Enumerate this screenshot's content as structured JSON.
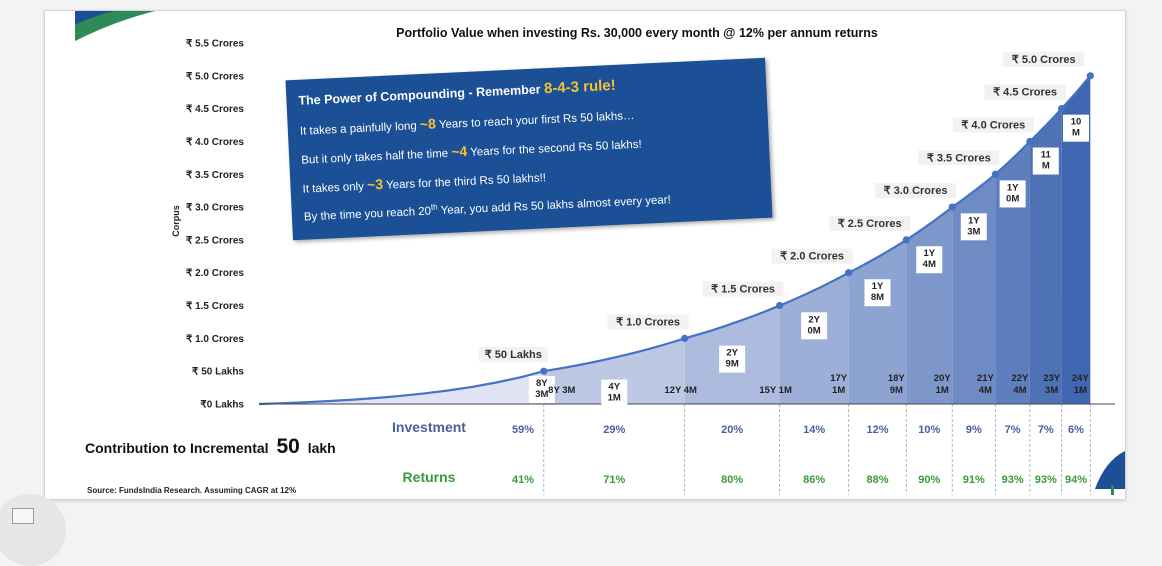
{
  "chart_data": {
    "type": "area",
    "title": "Portfolio Value when investing Rs. 30,000 every month @ 12% per annum returns",
    "ylabel": "Corpus",
    "y_ticks": [
      "₹0 Lakhs",
      "₹ 50 Lakhs",
      "₹ 1.0 Crores",
      "₹ 1.5 Crores",
      "₹ 2.0 Crores",
      "₹ 2.5 Crores",
      "₹ 3.0 Crores",
      "₹ 3.5 Crores",
      "₹ 4.0 Crores",
      "₹ 4.5 Crores",
      "₹ 5.0 Crores",
      "₹ 5.5 Crores"
    ],
    "ylim": [
      0,
      5.5
    ],
    "xlim": [
      0,
      24.1
    ],
    "points": [
      {
        "years": 8.25,
        "value": 0.5,
        "label": "₹ 50 Lakhs",
        "duration": [
          "8Y",
          "3M"
        ],
        "xtick": "8Y 3M",
        "investment": "59%",
        "returns": "41%"
      },
      {
        "years": 12.33,
        "value": 1.0,
        "label": "₹ 1.0 Crores",
        "duration": [
          "4Y",
          "1M"
        ],
        "xtick": "12Y 4M",
        "investment": "29%",
        "returns": "71%"
      },
      {
        "years": 15.08,
        "value": 1.5,
        "label": "₹ 1.5 Crores",
        "duration": [
          "2Y",
          "9M"
        ],
        "xtick": "15Y 1M",
        "investment": "20%",
        "returns": "80%"
      },
      {
        "years": 17.08,
        "value": 2.0,
        "label": "₹ 2.0 Crores",
        "duration": [
          "2Y",
          "0M"
        ],
        "xtick": "17Y 1M",
        "investment": "14%",
        "returns": "86%"
      },
      {
        "years": 18.75,
        "value": 2.5,
        "label": "₹ 2.5 Crores",
        "duration": [
          "1Y",
          "8M"
        ],
        "xtick": "18Y 9M",
        "investment": "12%",
        "returns": "88%"
      },
      {
        "years": 20.08,
        "value": 3.0,
        "label": "₹ 3.0 Crores",
        "duration": [
          "1Y",
          "4M"
        ],
        "xtick": "20Y 1M",
        "investment": "10%",
        "returns": "90%"
      },
      {
        "years": 21.33,
        "value": 3.5,
        "label": "₹ 3.5 Crores",
        "duration": [
          "1Y",
          "3M"
        ],
        "xtick": "21Y 4M",
        "investment": "9%",
        "returns": "91%"
      },
      {
        "years": 22.33,
        "value": 4.0,
        "label": "₹ 4.0 Crores",
        "duration": [
          "1Y",
          "0M"
        ],
        "xtick": "22Y 4M",
        "investment": "7%",
        "returns": "93%"
      },
      {
        "years": 23.25,
        "value": 4.5,
        "label": "₹ 4.5 Crores",
        "duration": [
          "11",
          "M"
        ],
        "xtick": "23Y 3M",
        "investment": "7%",
        "returns": "93%"
      },
      {
        "years": 24.08,
        "value": 5.0,
        "label": "₹ 5.0 Crores",
        "duration": [
          "10",
          "M"
        ],
        "xtick": "24Y 1M",
        "investment": "6%",
        "returns": "94%"
      }
    ],
    "colors": {
      "line": "#4472c4",
      "fill_light": "#dfe3f3",
      "fill_dark": "#3f66b0",
      "investment": "#4a5fa0",
      "returns": "#3a9a3a"
    }
  },
  "table": {
    "heading": "Contribution to Incremental",
    "heading_num": "50",
    "heading_unit": "lakh",
    "investment_label": "Investment",
    "returns_label": "Returns"
  },
  "info_box": {
    "headline": "The Power of Compounding - Remember ",
    "headline_hl": "8-4-3 rule!",
    "line1_a": "It takes a painfully long ",
    "line1_num": "~8",
    "line1_b": " Years to reach your first Rs 50 lakhs…",
    "line2_a": "But it only takes half the time ",
    "line2_num": "~4",
    "line2_b": " Years for the second Rs 50 lakhs!",
    "line3_a": "It takes only ",
    "line3_num": "~3",
    "line3_b": " Years for the third Rs 50 lakhs!!",
    "line4_a": "By the time you reach 20",
    "line4_sup": "th",
    "line4_b": " Year, you add Rs 50 lakhs almost every year!"
  },
  "source": "Source: FundsIndia Research. Assuming CAGR at 12%"
}
